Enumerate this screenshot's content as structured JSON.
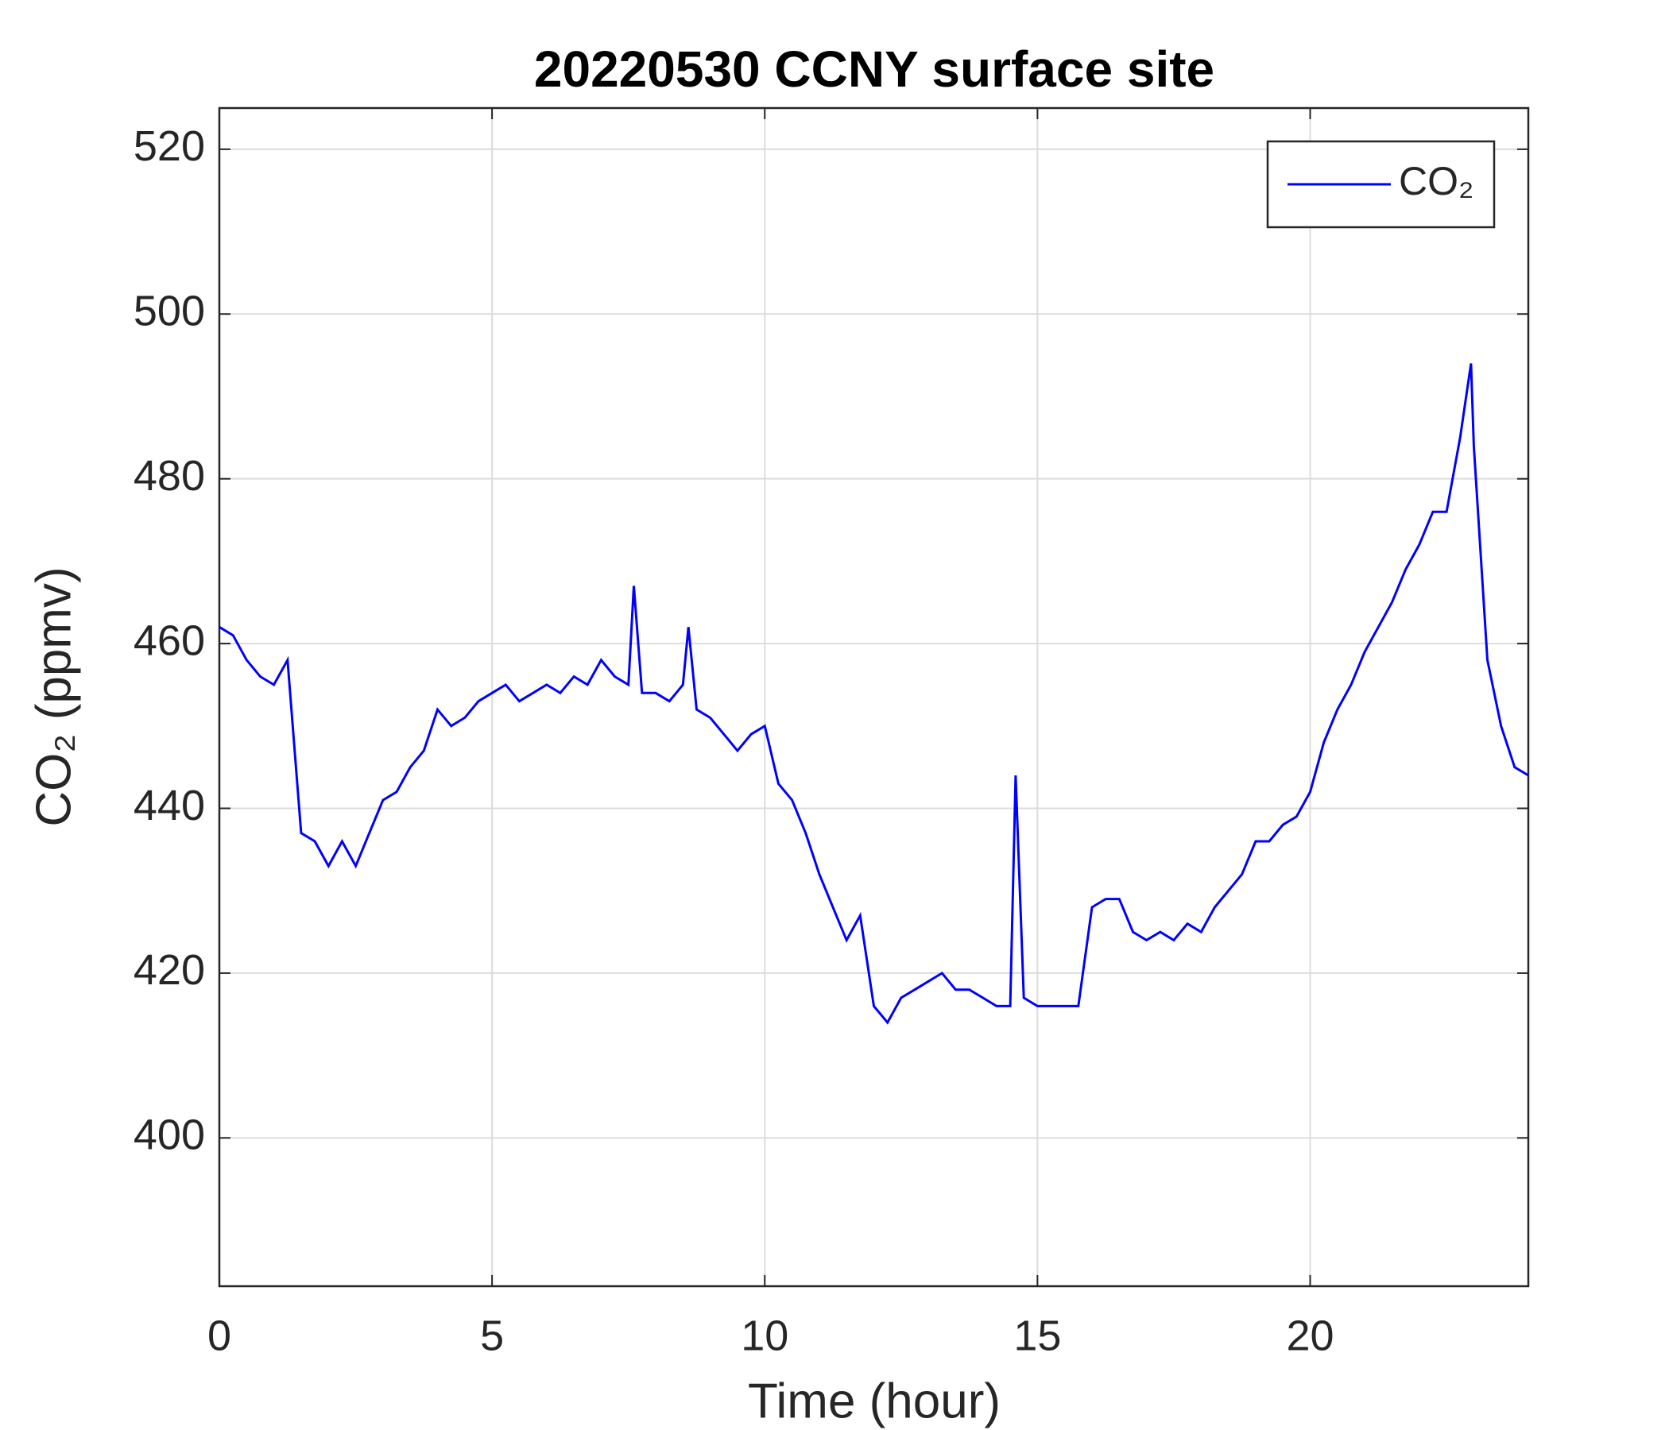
{
  "chart_data": {
    "type": "line",
    "title": "20220530 CCNY surface site",
    "xlabel": "Time (hour)",
    "ylabel": "CO₂ (ppmv)",
    "xlim": [
      0,
      24
    ],
    "ylim": [
      382,
      525
    ],
    "xticks": [
      0,
      5,
      10,
      15,
      20
    ],
    "yticks": [
      400,
      420,
      440,
      460,
      480,
      500,
      520
    ],
    "grid": true,
    "legend": "northeast",
    "x": [
      0,
      0.25,
      0.5,
      0.75,
      1.0,
      1.25,
      1.5,
      1.75,
      2.0,
      2.25,
      2.5,
      2.75,
      3.0,
      3.25,
      3.5,
      3.75,
      4.0,
      4.25,
      4.5,
      4.75,
      5.0,
      5.25,
      5.5,
      5.75,
      6.0,
      6.25,
      6.5,
      6.75,
      7.0,
      7.25,
      7.5,
      7.6,
      7.75,
      8.0,
      8.25,
      8.5,
      8.6,
      8.75,
      9.0,
      9.25,
      9.5,
      9.75,
      10.0,
      10.25,
      10.5,
      10.75,
      11.0,
      11.25,
      11.5,
      11.75,
      12.0,
      12.25,
      12.5,
      12.75,
      13.0,
      13.25,
      13.5,
      13.75,
      14.0,
      14.25,
      14.5,
      14.6,
      14.75,
      15.0,
      15.25,
      15.5,
      15.75,
      16.0,
      16.25,
      16.5,
      16.75,
      17.0,
      17.25,
      17.5,
      17.75,
      18.0,
      18.25,
      18.5,
      18.75,
      19.0,
      19.25,
      19.5,
      19.75,
      20.0,
      20.25,
      20.5,
      20.75,
      21.0,
      21.25,
      21.5,
      21.75,
      22.0,
      22.25,
      22.5,
      22.75,
      22.95,
      23.0,
      23.25,
      23.5,
      23.75,
      24.0
    ],
    "series": [
      {
        "name": "CO₂",
        "color": "#0000ff",
        "values": [
          462,
          461,
          458,
          456,
          455,
          458,
          437,
          436,
          433,
          436,
          433,
          437,
          441,
          442,
          445,
          447,
          452,
          450,
          451,
          453,
          454,
          455,
          453,
          454,
          455,
          454,
          456,
          455,
          458,
          456,
          455,
          467,
          454,
          454,
          453,
          455,
          462,
          452,
          451,
          449,
          447,
          449,
          450,
          443,
          441,
          437,
          432,
          428,
          424,
          427,
          416,
          414,
          417,
          418,
          419,
          420,
          418,
          418,
          417,
          416,
          416,
          444,
          417,
          416,
          416,
          416,
          416,
          428,
          429,
          429,
          425,
          424,
          425,
          424,
          426,
          425,
          428,
          430,
          432,
          436,
          436,
          438,
          439,
          442,
          448,
          452,
          455,
          459,
          462,
          465,
          469,
          472,
          476,
          476,
          485,
          494,
          484,
          458,
          450,
          445,
          444
        ]
      }
    ]
  }
}
